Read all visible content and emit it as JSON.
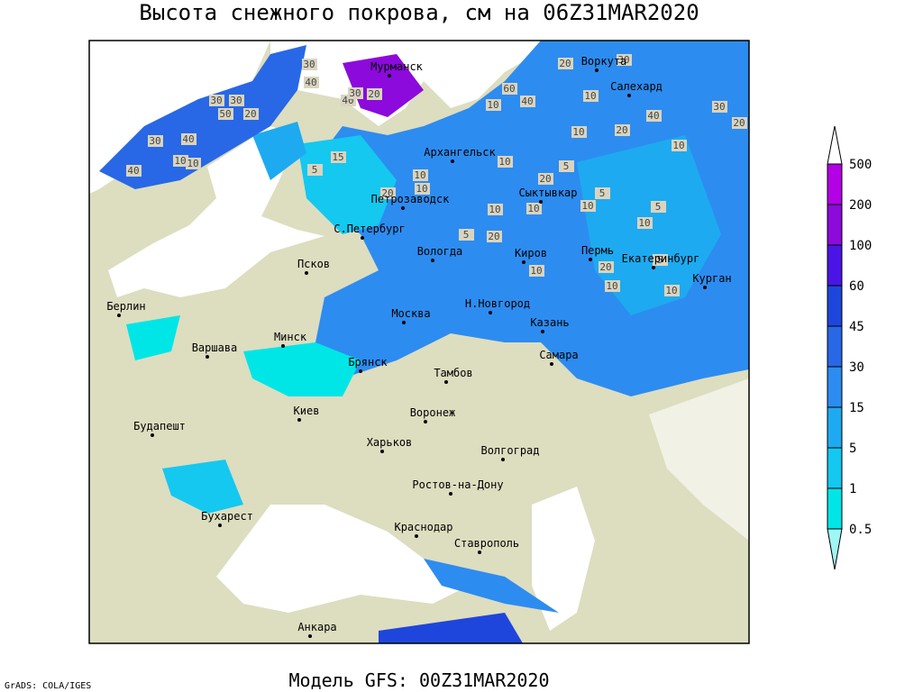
{
  "header": {
    "title": "Высота снежного покрова, см на 06Z31MAR2020"
  },
  "footer": {
    "model": "Модель GFS: 00Z31MAR2020",
    "credit": "GrADS: COLA/IGES"
  },
  "cities": [
    "Мурманск",
    "Воркута",
    "Салехард",
    "Архангельск",
    "Петрозаводск",
    "Сыктывкар",
    "С.Петербург",
    "Вологда",
    "Киров",
    "Пермь",
    "Екатеринбург",
    "Курган",
    "Псков",
    "Берлин",
    "Москва",
    "Н.Новгород",
    "Казань",
    "Минск",
    "Варшава",
    "Брянск",
    "Самара",
    "Тамбов",
    "Киев",
    "Воронеж",
    "Будапешт",
    "Харьков",
    "Волгоград",
    "Ростов-на-Дону",
    "Бухарест",
    "Краснодар",
    "Ставрополь",
    "Анкара"
  ],
  "contour_labels": [
    "30",
    "40",
    "50",
    "30",
    "20",
    "30",
    "40",
    "30",
    "10",
    "40",
    "10",
    "5",
    "15",
    "40",
    "30",
    "20",
    "40",
    "60",
    "20",
    "30",
    "10",
    "10",
    "20",
    "40",
    "30",
    "20",
    "10",
    "10",
    "10",
    "20",
    "10",
    "5",
    "20",
    "10",
    "10",
    "20",
    "5",
    "10",
    "10",
    "5",
    "20",
    "10",
    "5",
    "10",
    "10",
    "5",
    "10"
  ],
  "legend": {
    "levels": [
      "0.5",
      "1",
      "5",
      "15",
      "30",
      "45",
      "60",
      "100",
      "200",
      "500"
    ],
    "colors": [
      "#a0f5f5",
      "#00e6e6",
      "#14c8f0",
      "#1eaaf0",
      "#2d8cf0",
      "#2868e6",
      "#1e46dc",
      "#4b14e6",
      "#8c0adc",
      "#b400e6",
      "#ffffff"
    ]
  }
}
